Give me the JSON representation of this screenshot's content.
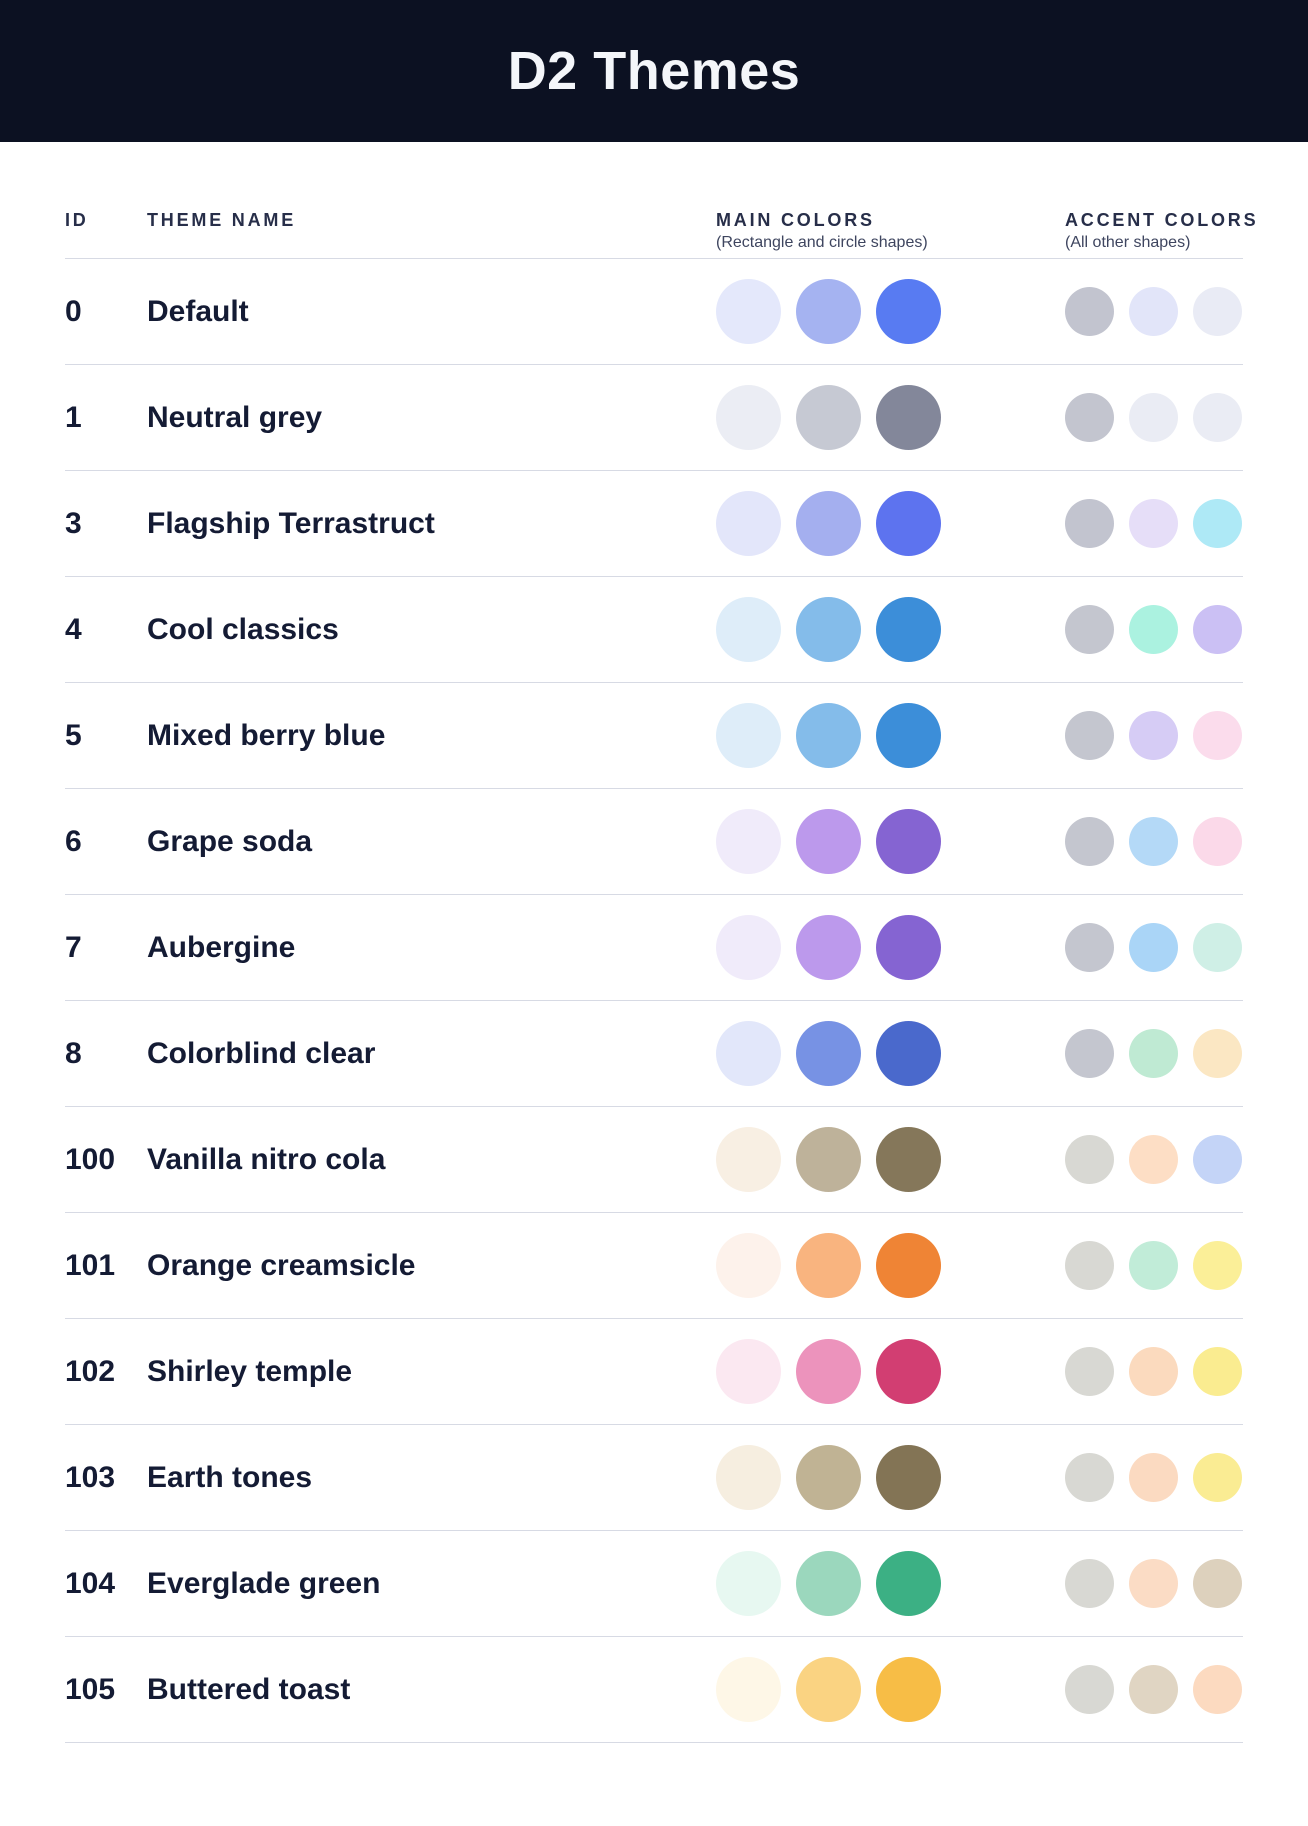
{
  "header": {
    "title": "D2 Themes"
  },
  "table": {
    "columns": {
      "id": "ID",
      "theme_name": "THEME NAME",
      "main_colors": "MAIN COLORS",
      "main_colors_sub": "(Rectangle and circle shapes)",
      "accent_colors": "ACCENT COLORS",
      "accent_colors_sub": "(All other shapes)"
    },
    "rows": [
      {
        "id": "0",
        "name": "Default",
        "main": [
          "#E4E8FB",
          "#A5B3F1",
          "#587BF2"
        ],
        "accent": [
          "#C2C4CF",
          "#E2E5F9",
          "#E9EBF5"
        ]
      },
      {
        "id": "1",
        "name": "Neutral grey",
        "main": [
          "#EBEDF4",
          "#C6C9D3",
          "#83879A"
        ],
        "accent": [
          "#C3C5CF",
          "#EAECF4",
          "#EAECF4"
        ]
      },
      {
        "id": "3",
        "name": "Flagship Terrastruct",
        "main": [
          "#E3E6FA",
          "#A4AFEF",
          "#5D73EF"
        ],
        "accent": [
          "#C2C4CF",
          "#E6DEF8",
          "#AEE9F6"
        ]
      },
      {
        "id": "4",
        "name": "Cool classics",
        "main": [
          "#DEEDF9",
          "#84BCEA",
          "#3C8ED9"
        ],
        "accent": [
          "#C4C6CF",
          "#ABF2E0",
          "#CBC0F4"
        ]
      },
      {
        "id": "5",
        "name": "Mixed berry blue",
        "main": [
          "#DEEDF9",
          "#84BCEA",
          "#3C8ED9"
        ],
        "accent": [
          "#C4C6CF",
          "#D6CCF5",
          "#FBDCEC"
        ]
      },
      {
        "id": "6",
        "name": "Grape soda",
        "main": [
          "#F0EBFA",
          "#BC99EC",
          "#8564D2"
        ],
        "accent": [
          "#C4C6CF",
          "#B4D9F7",
          "#FBD9E9"
        ]
      },
      {
        "id": "7",
        "name": "Aubergine",
        "main": [
          "#F0EBFA",
          "#BC99EC",
          "#8564D2"
        ],
        "accent": [
          "#C4C6CF",
          "#AAD5F7",
          "#CFEFE6"
        ]
      },
      {
        "id": "8",
        "name": "Colorblind clear",
        "main": [
          "#E2E7FA",
          "#7792E4",
          "#4A69CC"
        ],
        "accent": [
          "#C4C6CF",
          "#BFEAD3",
          "#FBE7C3"
        ]
      },
      {
        "id": "100",
        "name": "Vanilla nitro cola",
        "main": [
          "#F8EFE3",
          "#BEB29A",
          "#85775A"
        ],
        "accent": [
          "#D8D8D3",
          "#FDDEC5",
          "#C4D4F7"
        ]
      },
      {
        "id": "101",
        "name": "Orange creamsicle",
        "main": [
          "#FDF2EB",
          "#F9B47F",
          "#EF8435"
        ],
        "accent": [
          "#D8D8D3",
          "#C1ECD8",
          "#FBEF98"
        ]
      },
      {
        "id": "102",
        "name": "Shirley temple",
        "main": [
          "#FBE8F1",
          "#EC93BC",
          "#D23E72"
        ],
        "accent": [
          "#D8D8D3",
          "#FBDABE",
          "#FAEC90"
        ]
      },
      {
        "id": "103",
        "name": "Earth tones",
        "main": [
          "#F6EEE0",
          "#C0B394",
          "#837455"
        ],
        "accent": [
          "#D8D8D3",
          "#FBDAC1",
          "#FAEC93"
        ]
      },
      {
        "id": "104",
        "name": "Everglade green",
        "main": [
          "#E7F8F1",
          "#9BD7BD",
          "#3CB084"
        ],
        "accent": [
          "#D8D8D3",
          "#FBDCC5",
          "#DDD1BD"
        ]
      },
      {
        "id": "105",
        "name": "Buttered toast",
        "main": [
          "#FEF7E7",
          "#FAD382",
          "#F7BD46"
        ],
        "accent": [
          "#D8D8D3",
          "#E0D5C3",
          "#FCDAC0"
        ]
      }
    ]
  },
  "colors": {
    "banner_bg": "#0C1122",
    "title_text": "#F4F6FA",
    "row_text": "#141B34",
    "column_header_text": "#272E49",
    "column_subheader_text": "#3E455F",
    "separator": "#D7DAE4",
    "page_bg": "#FFFFFF"
  }
}
